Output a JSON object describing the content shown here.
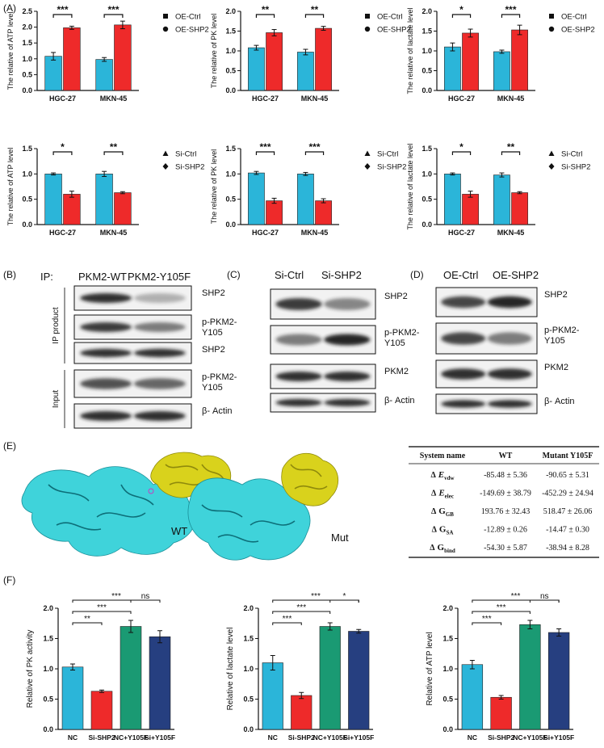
{
  "panel_labels": [
    "(A)",
    "(B)",
    "(C)",
    "(D)",
    "(E)",
    "(F)"
  ],
  "chart_data": [
    {
      "type": "bar",
      "y_label": "The relative of ATP level",
      "categories": [
        "HGC-27",
        "MKN-45"
      ],
      "series": [
        {
          "name": "OE-Ctrl",
          "color": "#2bb5d9",
          "marker": "square",
          "values": [
            1.08,
            0.98
          ],
          "errors": [
            0.12,
            0.06
          ]
        },
        {
          "name": "OE-SHP2",
          "color": "#ee2a2a",
          "marker": "circle",
          "values": [
            1.98,
            2.07
          ],
          "errors": [
            0.05,
            0.12
          ]
        }
      ],
      "significance": [
        "***",
        "***"
      ],
      "ylim": [
        0,
        2.5
      ],
      "yticks": [
        {
          "value": 0,
          "label": "0.0"
        },
        0.5,
        {
          "value": 1,
          "label": "1.0"
        },
        1.5,
        {
          "value": 2,
          "label": "2.0"
        },
        2.5
      ],
      "legend": "right"
    },
    {
      "type": "bar",
      "y_label": "The relative of PK level",
      "categories": [
        "HGC-27",
        "MKN-45"
      ],
      "series": [
        {
          "name": "OE-Ctrl",
          "color": "#2bb5d9",
          "marker": "square",
          "values": [
            1.08,
            0.97
          ],
          "errors": [
            0.06,
            0.07
          ]
        },
        {
          "name": "OE-SHP2",
          "color": "#ee2a2a",
          "marker": "circle",
          "values": [
            1.46,
            1.57
          ],
          "errors": [
            0.08,
            0.05
          ]
        }
      ],
      "significance": [
        "**",
        "**"
      ],
      "ylim": [
        0,
        2
      ],
      "yticks": [
        {
          "value": 0,
          "label": "0.0"
        },
        0.5,
        {
          "value": 1,
          "label": "1.0"
        },
        1.5,
        {
          "value": 2,
          "label": "2.0"
        }
      ],
      "legend": "right"
    },
    {
      "type": "bar",
      "y_label": "The relative of lactate level",
      "categories": [
        "HGC-27",
        "MKN-45"
      ],
      "series": [
        {
          "name": "OE-Ctrl",
          "color": "#2bb5d9",
          "marker": "square",
          "values": [
            1.1,
            0.98
          ],
          "errors": [
            0.1,
            0.04
          ]
        },
        {
          "name": "OE-SHP2",
          "color": "#ee2a2a",
          "marker": "circle",
          "values": [
            1.45,
            1.53
          ],
          "errors": [
            0.1,
            0.12
          ]
        }
      ],
      "significance": [
        "*",
        "***"
      ],
      "ylim": [
        0,
        2
      ],
      "yticks": [
        {
          "value": 0,
          "label": "0.0"
        },
        0.5,
        {
          "value": 1,
          "label": "1.0"
        },
        1.5,
        {
          "value": 2,
          "label": "2.0"
        }
      ],
      "legend": "right"
    },
    {
      "type": "bar",
      "y_label": "The relative of ATP level",
      "categories": [
        "HGC-27",
        "MKN-45"
      ],
      "series": [
        {
          "name": "Si-Ctrl",
          "color": "#2bb5d9",
          "marker": "triangle",
          "values": [
            1.0,
            1.0
          ],
          "errors": [
            0.02,
            0.05
          ]
        },
        {
          "name": "Si-SHP2",
          "color": "#ee2a2a",
          "marker": "diamond",
          "values": [
            0.6,
            0.63
          ],
          "errors": [
            0.06,
            0.02
          ]
        }
      ],
      "significance": [
        "*",
        "**"
      ],
      "ylim": [
        0,
        1.5
      ],
      "yticks": [
        {
          "value": 0,
          "label": "0.0"
        },
        0.5,
        {
          "value": 1,
          "label": "1.0"
        },
        1.5
      ],
      "legend": "right"
    },
    {
      "type": "bar",
      "y_label": "The relative of PK level",
      "categories": [
        "HGC-27",
        "MKN-45"
      ],
      "series": [
        {
          "name": "Si-Ctrl",
          "color": "#2bb5d9",
          "marker": "triangle",
          "values": [
            1.02,
            1.0
          ],
          "errors": [
            0.03,
            0.03
          ]
        },
        {
          "name": "Si-SHP2",
          "color": "#ee2a2a",
          "marker": "diamond",
          "values": [
            0.47,
            0.47
          ],
          "errors": [
            0.05,
            0.04
          ]
        }
      ],
      "significance": [
        "***",
        "***"
      ],
      "ylim": [
        0,
        1.5
      ],
      "yticks": [
        {
          "value": 0,
          "label": "0.0"
        },
        0.5,
        {
          "value": 1,
          "label": "1.0"
        },
        1.5
      ],
      "legend": "right"
    },
    {
      "type": "bar",
      "y_label": "The relative of lactate level",
      "categories": [
        "HGC-27",
        "MKN-45"
      ],
      "series": [
        {
          "name": "Si-Ctrl",
          "color": "#2bb5d9",
          "marker": "triangle",
          "values": [
            1.0,
            0.98
          ],
          "errors": [
            0.02,
            0.04
          ]
        },
        {
          "name": "Si-SHP2",
          "color": "#ee2a2a",
          "marker": "diamond",
          "values": [
            0.6,
            0.63
          ],
          "errors": [
            0.06,
            0.02
          ]
        }
      ],
      "significance": [
        "*",
        "**"
      ],
      "ylim": [
        0,
        1.5
      ],
      "yticks": [
        {
          "value": 0,
          "label": "0.0"
        },
        0.5,
        {
          "value": 1,
          "label": "1.0"
        },
        1.5
      ],
      "legend": "right"
    },
    {
      "type": "bar",
      "y_label": "Relative of PK activity",
      "categories": [
        "NC",
        "Si-SHP2",
        "NC+Y105F",
        "Si+Y105F"
      ],
      "values": [
        1.03,
        0.63,
        1.7,
        1.53
      ],
      "errors": [
        0.05,
        0.02,
        0.1,
        0.1
      ],
      "colors": [
        "#2bb5d9",
        "#ee2a2a",
        "#1a9a73",
        "#263f80"
      ],
      "comparisons": [
        {
          "between": [
            "NC",
            "Si-SHP2"
          ],
          "label": "**"
        },
        {
          "between": [
            "NC",
            "NC+Y105F"
          ],
          "label": "***"
        },
        {
          "between": [
            "NC",
            "Si+Y105F"
          ],
          "label": "***"
        },
        {
          "between": [
            "NC+Y105F",
            "Si+Y105F"
          ],
          "label": "ns"
        }
      ],
      "ylim": [
        0,
        2
      ],
      "yticks": [
        {
          "value": 0,
          "label": "0.0"
        },
        0.5,
        {
          "value": 1,
          "label": "1.0"
        },
        1.5,
        {
          "value": 2,
          "label": "2.0"
        }
      ]
    },
    {
      "type": "bar",
      "y_label": "Relative of lactate level",
      "categories": [
        "NC",
        "Si-SHP2",
        "NC+Y105F",
        "Si+Y105F"
      ],
      "values": [
        1.1,
        0.56,
        1.7,
        1.62
      ],
      "errors": [
        0.12,
        0.05,
        0.06,
        0.03
      ],
      "colors": [
        "#2bb5d9",
        "#ee2a2a",
        "#1a9a73",
        "#263f80"
      ],
      "comparisons": [
        {
          "between": [
            "NC",
            "Si-SHP2"
          ],
          "label": "***"
        },
        {
          "between": [
            "NC",
            "NC+Y105F"
          ],
          "label": "***"
        },
        {
          "between": [
            "NC",
            "Si+Y105F"
          ],
          "label": "***"
        },
        {
          "between": [
            "NC+Y105F",
            "Si+Y105F"
          ],
          "label": "*"
        }
      ],
      "ylim": [
        0,
        2
      ],
      "yticks": [
        {
          "value": 0,
          "label": "0.0"
        },
        0.5,
        {
          "value": 1,
          "label": "1.0"
        },
        1.5,
        {
          "value": 2,
          "label": "2.0"
        }
      ]
    },
    {
      "type": "bar",
      "y_label": "Relative of ATP level",
      "categories": [
        "NC",
        "Si-SHP2",
        "NC+Y105F",
        "Si+Y105F"
      ],
      "values": [
        1.07,
        0.53,
        1.73,
        1.6
      ],
      "errors": [
        0.07,
        0.03,
        0.07,
        0.06
      ],
      "colors": [
        "#2bb5d9",
        "#ee2a2a",
        "#1a9a73",
        "#263f80"
      ],
      "comparisons": [
        {
          "between": [
            "NC",
            "Si-SHP2"
          ],
          "label": "***"
        },
        {
          "between": [
            "NC",
            "NC+Y105F"
          ],
          "label": "***"
        },
        {
          "between": [
            "NC",
            "Si+Y105F"
          ],
          "label": "***"
        },
        {
          "between": [
            "NC+Y105F",
            "Si+Y105F"
          ],
          "label": "ns"
        }
      ],
      "ylim": [
        0,
        2
      ],
      "yticks": [
        {
          "value": 0,
          "label": "0.0"
        },
        0.5,
        {
          "value": 1,
          "label": "1.0"
        },
        1.5,
        {
          "value": 2,
          "label": "2.0"
        }
      ]
    }
  ],
  "blot_b": {
    "ip_label": "IP:",
    "lanes": [
      "PKM2-WT",
      "PKM2-Y105F"
    ],
    "bands": [
      "SHP2",
      "p-PKM2-Y105",
      "SHP2",
      "p-PKM2-Y105",
      "β- Actin"
    ],
    "groups": [
      "IP product",
      "Input"
    ]
  },
  "blot_c": {
    "lanes": [
      "Si-Ctrl",
      "Si-SHP2"
    ],
    "bands": [
      "SHP2",
      "p-PKM2-Y105",
      "PKM2",
      "β- Actin"
    ]
  },
  "blot_d": {
    "lanes": [
      "OE-Ctrl",
      "OE-SHP2"
    ],
    "bands": [
      "SHP2",
      "p-PKM2-Y105",
      "PKM2",
      "β- Actin"
    ]
  },
  "structures": {
    "labels": [
      "WT",
      "Mut"
    ]
  },
  "table": {
    "header": [
      "System name",
      "WT",
      "Mutant Y105F"
    ],
    "rows": [
      {
        "name": {
          "delta": "Δ",
          "symbol": "E",
          "sub": "vdw"
        },
        "wt": "-85.48 ± 5.36",
        "mut": "-90.65 ± 5.31"
      },
      {
        "name": {
          "delta": "Δ",
          "symbol": "E",
          "sub": "elec"
        },
        "wt": "-149.69 ± 38.79",
        "mut": "-452.29 ± 24.94"
      },
      {
        "name": {
          "delta": "Δ",
          "symbol": "G",
          "sub": "GB"
        },
        "wt": "193.76 ± 32.43",
        "mut": "518.47 ± 26.06"
      },
      {
        "name": {
          "delta": "Δ",
          "symbol": "G",
          "sub": "SA"
        },
        "wt": "-12.89 ± 0.26",
        "mut": "-14.47 ± 0.30"
      },
      {
        "name": {
          "delta": "Δ",
          "symbol": "G",
          "sub": "bind"
        },
        "wt": "-54.30 ± 5.87",
        "mut": "-38.94 ± 8.28"
      }
    ]
  }
}
